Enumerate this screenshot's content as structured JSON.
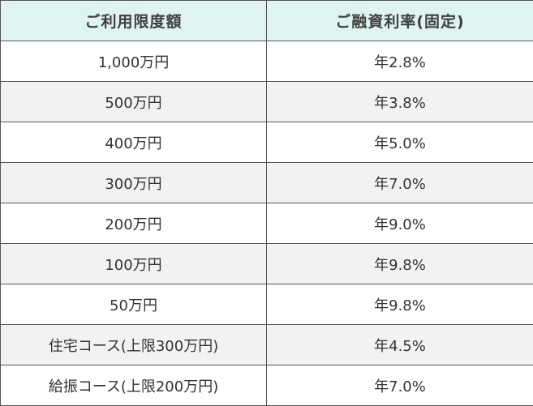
{
  "table": {
    "headers": {
      "limit": "ご利用限度額",
      "rate": "ご融資利率(固定)"
    },
    "rows": [
      {
        "limit": "1,000万円",
        "rate": "年2.8%"
      },
      {
        "limit": "500万円",
        "rate": "年3.8%"
      },
      {
        "limit": "400万円",
        "rate": "年5.0%"
      },
      {
        "limit": "300万円",
        "rate": "年7.0%"
      },
      {
        "limit": "200万円",
        "rate": "年9.0%"
      },
      {
        "limit": "100万円",
        "rate": "年9.8%"
      },
      {
        "limit": "50万円",
        "rate": "年9.8%"
      },
      {
        "limit": "住宅コース(上限300万円)",
        "rate": "年4.5%"
      },
      {
        "limit": "給振コース(上限200万円)",
        "rate": "年7.0%"
      }
    ]
  },
  "colors": {
    "header_background": "#dff3f1",
    "alt_row_background": "#f2f2f2",
    "border": "#555555",
    "text": "#333333"
  }
}
